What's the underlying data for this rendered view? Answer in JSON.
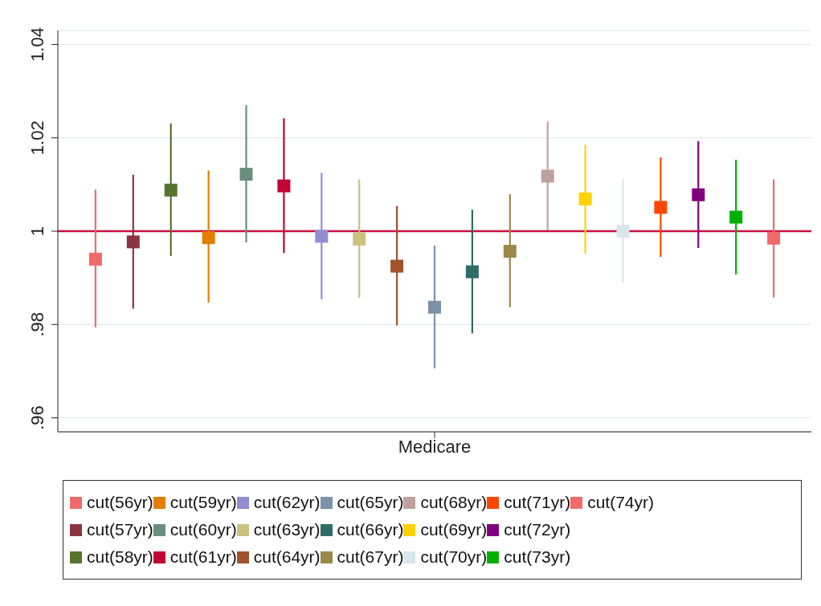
{
  "chart_data": {
    "type": "scatter",
    "categories": [
      "Medicare"
    ],
    "marker": "square",
    "grid": "y",
    "legend": "bottom",
    "ylim": [
      0.957,
      1.043
    ],
    "yticks": [
      {
        "value": 0.96,
        "label": ".96"
      },
      {
        "value": 0.98,
        "label": ".98"
      },
      1,
      1.02,
      1.04
    ],
    "ref_lines": [
      {
        "axis": "y",
        "value": 1,
        "color": "#c8103e"
      }
    ],
    "series": [
      {
        "name": "cut(56yr)",
        "color": "#f06a6a",
        "values": [
          0.994
        ],
        "errors": [
          [
            0.9794,
            1.0089
          ]
        ]
      },
      {
        "name": "cut(57yr)",
        "color": "#8b3540",
        "values": [
          0.9977
        ],
        "errors": [
          [
            0.9834,
            1.0121
          ]
        ]
      },
      {
        "name": "cut(58yr)",
        "color": "#55752f",
        "values": [
          1.0088
        ],
        "errors": [
          [
            0.9947,
            1.0231
          ]
        ]
      },
      {
        "name": "cut(59yr)",
        "color": "#e37e00",
        "values": [
          0.9986
        ],
        "errors": [
          [
            0.9847,
            1.013
          ]
        ]
      },
      {
        "name": "cut(60yr)",
        "color": "#6a8f7f",
        "values": [
          1.0122
        ],
        "errors": [
          [
            0.9976,
            1.027
          ]
        ]
      },
      {
        "name": "cut(61yr)",
        "color": "#c10534",
        "values": [
          1.0097
        ],
        "errors": [
          [
            0.9953,
            1.0242
          ]
        ]
      },
      {
        "name": "cut(62yr)",
        "color": "#938dd2",
        "values": [
          0.9989
        ],
        "errors": [
          [
            0.9854,
            1.0125
          ]
        ]
      },
      {
        "name": "cut(63yr)",
        "color": "#cac27e",
        "values": [
          0.9983
        ],
        "errors": [
          [
            0.9857,
            1.0111
          ]
        ]
      },
      {
        "name": "cut(64yr)",
        "color": "#a0522d",
        "values": [
          0.9925
        ],
        "errors": [
          [
            0.9798,
            1.0054
          ]
        ]
      },
      {
        "name": "cut(65yr)",
        "color": "#7b92a8",
        "values": [
          0.9837
        ],
        "errors": [
          [
            0.9706,
            0.9969
          ]
        ]
      },
      {
        "name": "cut(66yr)",
        "color": "#2d6d66",
        "values": [
          0.9913
        ],
        "errors": [
          [
            0.9781,
            1.0046
          ]
        ]
      },
      {
        "name": "cut(67yr)",
        "color": "#9c8847",
        "values": [
          0.9957
        ],
        "errors": [
          [
            0.9837,
            1.0079
          ]
        ]
      },
      {
        "name": "cut(68yr)",
        "color": "#bfa19c",
        "values": [
          1.0118
        ],
        "errors": [
          [
            1.0002,
            1.0235
          ]
        ]
      },
      {
        "name": "cut(69yr)",
        "color": "#ffd200",
        "values": [
          1.0069
        ],
        "errors": [
          [
            0.9952,
            1.0185
          ]
        ]
      },
      {
        "name": "cut(70yr)",
        "color": "#d9e6eb",
        "values": [
          1.0
        ],
        "errors": [
          [
            0.9889,
            1.0111
          ]
        ]
      },
      {
        "name": "cut(71yr)",
        "color": "#ff4500",
        "values": [
          1.0051
        ],
        "errors": [
          [
            0.9945,
            1.0158
          ]
        ]
      },
      {
        "name": "cut(72yr)",
        "color": "#800080",
        "values": [
          1.0078
        ],
        "errors": [
          [
            0.9964,
            1.0193
          ]
        ]
      },
      {
        "name": "cut(73yr)",
        "color": "#00b000",
        "values": [
          1.003
        ],
        "errors": [
          [
            0.9907,
            1.0153
          ]
        ]
      },
      {
        "name": "cut(74yr)",
        "color": "#f06a6a",
        "values": [
          0.9985
        ],
        "errors": [
          [
            0.9858,
            1.0111
          ]
        ]
      }
    ]
  }
}
